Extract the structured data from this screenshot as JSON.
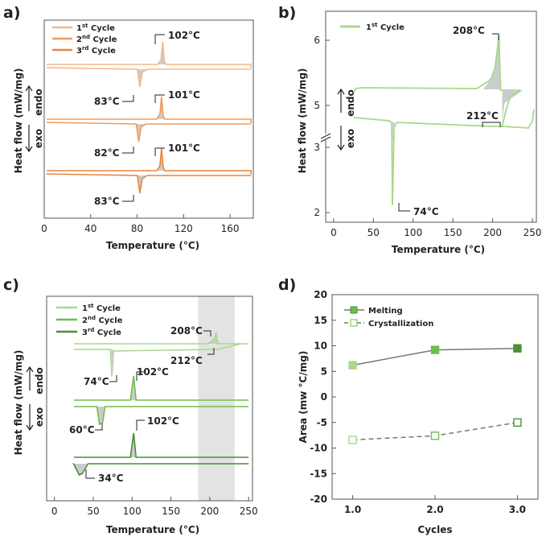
{
  "figure": {
    "panels": {
      "a": {
        "label": "a)"
      },
      "b": {
        "label": "b)"
      },
      "c": {
        "label": "c)"
      },
      "d": {
        "label": "d)"
      }
    },
    "endo_label": "endo",
    "exo_label": "exo",
    "colors": {
      "orange1": "#f5b78a",
      "orange2": "#f09a5a",
      "orange3": "#e8853e",
      "green1": "#a6d98a",
      "green2": "#6cbf4c",
      "green3": "#4a8f34",
      "shade": "#cccccc",
      "line_gray": "#777777"
    }
  },
  "chart_data": [
    {
      "panel": "a",
      "type": "line",
      "xlabel": "Temperature (°C)",
      "ylabel": "Heat flow (mW/mg)",
      "xlim": [
        0,
        180
      ],
      "xticks": [
        "0",
        "40",
        "80",
        "120",
        "160"
      ],
      "legend": [
        {
          "name": "1st Cycle",
          "sup": "st",
          "base": "1",
          "rest": " Cycle"
        },
        {
          "name": "2nd Cycle",
          "sup": "nd",
          "base": "2",
          "rest": " Cycle"
        },
        {
          "name": "3rd Cycle",
          "sup": "rd",
          "base": "3",
          "rest": " Cycle"
        }
      ],
      "series": [
        {
          "name": "1st Cycle",
          "melting_peak_C": 102,
          "crystallization_peak_C": 83
        },
        {
          "name": "2nd Cycle",
          "melting_peak_C": 101,
          "crystallization_peak_C": 82
        },
        {
          "name": "3rd Cycle",
          "melting_peak_C": 101,
          "crystallization_peak_C": 83
        }
      ],
      "annotations": [
        "102°C",
        "83°C",
        "101°C",
        "82°C",
        "101°C",
        "83°C"
      ]
    },
    {
      "panel": "b",
      "type": "line",
      "xlabel": "Temperature (°C)",
      "ylabel": "Heat flow (mW/mg)",
      "xlim": [
        -10,
        255
      ],
      "xticks": [
        "0",
        "50",
        "100",
        "150",
        "200",
        "250"
      ],
      "yticks": [
        "6",
        "5",
        "3",
        "2"
      ],
      "axis_break": true,
      "legend": [
        {
          "name": "1st Cycle",
          "sup": "st",
          "base": "1",
          "rest": " Cycle"
        }
      ],
      "series": [
        {
          "name": "1st Cycle",
          "melting_peak_C": 208,
          "melting_end_C": 212,
          "crystallization_peak_C": 74
        }
      ],
      "annotations": [
        "208°C",
        "212°C",
        "74°C"
      ]
    },
    {
      "panel": "c",
      "type": "line",
      "xlabel": "Temperature (°C)",
      "ylabel": "Heat flow (mW/mg)",
      "xlim": [
        -10,
        255
      ],
      "xticks": [
        "0",
        "50",
        "100",
        "150",
        "200",
        "250"
      ],
      "highlight_range_C": [
        185,
        232
      ],
      "legend": [
        {
          "name": "1st Cycle",
          "sup": "st",
          "base": "1",
          "rest": " Cycle"
        },
        {
          "name": "2nd Cycle",
          "sup": "nd",
          "base": "2",
          "rest": " Cycle"
        },
        {
          "name": "3rd Cycle",
          "sup": "rd",
          "base": "3",
          "rest": " Cycle"
        }
      ],
      "series": [
        {
          "name": "1st Cycle",
          "melting_peak_C": 208,
          "melting_end_C": 212,
          "crystallization_peak_C": 74
        },
        {
          "name": "2nd Cycle",
          "melting_peak_C": 102,
          "crystallization_peak_C": 60
        },
        {
          "name": "3rd Cycle",
          "melting_peak_C": 102,
          "crystallization_peak_C": 34
        }
      ],
      "annotations": [
        "208°C",
        "212°C",
        "74°C",
        "102°C",
        "60°C",
        "102°C",
        "34°C"
      ]
    },
    {
      "panel": "d",
      "type": "line",
      "xlabel": "Cycles",
      "ylabel": "Area (mw °C/mg)",
      "categories": [
        "1.0",
        "2.0",
        "3.0"
      ],
      "x": [
        1,
        2,
        3
      ],
      "xlim": [
        0.75,
        3.25
      ],
      "ylim": [
        -20,
        20
      ],
      "yticks": [
        "20",
        "15",
        "10",
        "5",
        "0",
        "-5",
        "-10",
        "-15",
        "-20"
      ],
      "series": [
        {
          "name": "Melting",
          "values": [
            6.2,
            9.2,
            9.5
          ],
          "marker": "filled-square",
          "linestyle": "solid"
        },
        {
          "name": "Crystallization",
          "values": [
            -8.4,
            -7.6,
            -5.0
          ],
          "marker": "open-square",
          "linestyle": "dashed"
        }
      ]
    }
  ]
}
